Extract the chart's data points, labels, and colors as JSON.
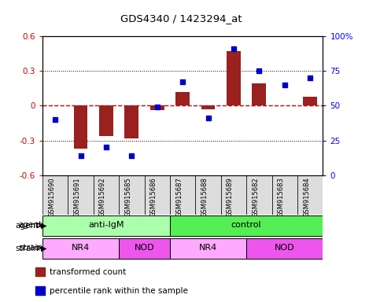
{
  "title": "GDS4340 / 1423294_at",
  "samples": [
    "GSM915690",
    "GSM915691",
    "GSM915692",
    "GSM915685",
    "GSM915686",
    "GSM915687",
    "GSM915688",
    "GSM915689",
    "GSM915682",
    "GSM915683",
    "GSM915684"
  ],
  "transformed_counts": [
    0.0,
    -0.37,
    -0.26,
    -0.28,
    -0.04,
    0.12,
    -0.03,
    0.47,
    0.19,
    0.0,
    0.08
  ],
  "percentile_ranks": [
    40,
    14,
    20,
    14,
    49,
    67,
    41,
    91,
    75,
    65,
    70
  ],
  "agent_groups": [
    {
      "label": "anti-IgM",
      "start": 0,
      "end": 5,
      "color": "#aaffaa"
    },
    {
      "label": "control",
      "start": 5,
      "end": 11,
      "color": "#55ee55"
    }
  ],
  "strain_groups": [
    {
      "label": "NR4",
      "start": 0,
      "end": 3,
      "color": "#ffaaff"
    },
    {
      "label": "NOD",
      "start": 3,
      "end": 5,
      "color": "#ee55ee"
    },
    {
      "label": "NR4",
      "start": 5,
      "end": 8,
      "color": "#ffaaff"
    },
    {
      "label": "NOD",
      "start": 8,
      "end": 11,
      "color": "#ee55ee"
    }
  ],
  "bar_color": "#9B2020",
  "dot_color": "#0000CC",
  "ylim_left": [
    -0.6,
    0.6
  ],
  "ylim_right": [
    0,
    100
  ],
  "yticks_left": [
    -0.6,
    -0.3,
    0.0,
    0.3,
    0.6
  ],
  "yticks_right": [
    0,
    25,
    50,
    75,
    100
  ],
  "ytick_labels_left": [
    "-0.6",
    "-0.3",
    "0",
    "0.3",
    "0.6"
  ],
  "ytick_labels_right": [
    "0",
    "25",
    "50",
    "75",
    "100%"
  ],
  "hline_color": "#cc0000",
  "dotted_lines": [
    -0.3,
    0.3
  ],
  "legend_items": [
    {
      "color": "#9B2020",
      "label": "transformed count"
    },
    {
      "color": "#0000CC",
      "label": "percentile rank within the sample"
    }
  ]
}
